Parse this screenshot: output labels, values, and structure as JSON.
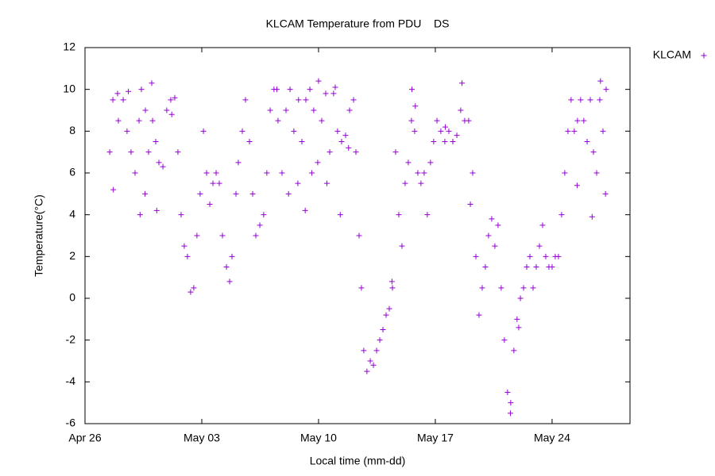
{
  "chart_data": {
    "type": "scatter",
    "title": "KLCAM Temperature from PDU    DS",
    "x_label": "Local time (mm-dd)",
    "y_label": "Temperature(°C)",
    "xlim": [
      0,
      32.67
    ],
    "xticks": [
      {
        "value": 0,
        "label": "Apr 26"
      },
      {
        "value": 7,
        "label": "May 03"
      },
      {
        "value": 14,
        "label": "May 10"
      },
      {
        "value": 21,
        "label": "May 17"
      },
      {
        "value": 28,
        "label": "May 24"
      }
    ],
    "ylim": [
      -6,
      12
    ],
    "yticks": [
      -6,
      -4,
      -2,
      0,
      2,
      4,
      6,
      8,
      10,
      12
    ],
    "legend_position": "top-right",
    "series": [
      {
        "name": "KLCAM",
        "color": "#9400d3",
        "x": [
          1.48,
          1.67,
          1.95,
          2.29,
          2.52,
          2.76,
          3.0,
          3.24,
          3.38,
          3.62,
          3.81,
          4.05,
          4.24,
          4.43,
          4.67,
          4.9,
          5.14,
          5.38,
          5.57,
          5.76,
          5.95,
          6.14,
          6.33,
          6.52,
          6.71,
          6.9,
          7.1,
          7.29,
          7.48,
          7.67,
          7.86,
          8.05,
          8.24,
          8.48,
          8.67,
          8.81,
          9.05,
          9.19,
          9.43,
          9.62,
          9.86,
          10.05,
          10.24,
          10.48,
          10.71,
          10.9,
          11.1,
          11.33,
          11.57,
          11.81,
          12.05,
          12.29,
          12.52,
          12.76,
          13.0,
          13.24,
          13.48,
          13.71,
          13.95,
          14.19,
          14.43,
          14.67,
          14.9,
          15.14,
          15.38,
          15.62,
          15.86,
          16.1,
          16.24,
          16.43,
          16.57,
          16.71,
          16.9,
          17.1,
          17.29,
          17.48,
          17.67,
          17.86,
          18.05,
          18.24,
          18.43,
          18.62,
          18.81,
          19.0,
          19.19,
          19.38,
          19.57,
          19.76,
          19.95,
          20.14,
          20.33,
          20.52,
          20.71,
          20.9,
          21.1,
          21.33,
          21.57,
          21.81,
          22.05,
          22.29,
          22.52,
          22.76,
          23.0,
          23.24,
          23.43,
          23.62,
          23.81,
          24.0,
          24.19,
          24.38,
          24.57,
          24.76,
          24.95,
          25.14,
          25.33,
          25.52,
          25.71,
          25.9,
          26.1,
          26.29,
          26.48,
          26.67,
          26.86,
          27.05,
          27.24,
          27.43,
          27.62,
          27.81,
          28.0,
          28.19,
          28.38,
          28.57,
          28.76,
          28.95,
          29.14,
          29.33,
          29.52,
          29.71,
          29.9,
          30.1,
          30.29,
          30.48,
          30.67,
          30.86,
          31.05,
          31.24,
          1.7,
          2.0,
          2.6,
          3.3,
          3.6,
          4.0,
          4.3,
          5.2,
          11.5,
          12.2,
          12.8,
          13.2,
          13.6,
          14.0,
          14.5,
          15.0,
          15.3,
          15.8,
          18.4,
          19.6,
          19.8,
          21.6,
          22.6,
          23.1,
          25.5,
          26.0,
          29.5,
          30.4,
          30.9,
          31.2
        ],
        "values": [
          7,
          9.5,
          9.8,
          9.5,
          8,
          7,
          6,
          8.5,
          10,
          9,
          7,
          8.5,
          7.5,
          6.5,
          6.3,
          9,
          9.5,
          9.6,
          7,
          4,
          2.5,
          2,
          0.3,
          0.5,
          3,
          5,
          8,
          6,
          4.5,
          5.5,
          6,
          5.5,
          3,
          1.5,
          0.8,
          2,
          5,
          6.5,
          8,
          9.5,
          7.5,
          5,
          3,
          3.5,
          4,
          6,
          9,
          10,
          8.5,
          6,
          9,
          10,
          8,
          5.5,
          7.5,
          9.5,
          10,
          9,
          6.5,
          8.5,
          9.8,
          7,
          9.8,
          8,
          7.5,
          7.8,
          9,
          9.5,
          7,
          3,
          0.5,
          -2.5,
          -3.5,
          -3,
          -3.2,
          -2.5,
          -2,
          -1.5,
          -0.8,
          -0.5,
          0.5,
          7,
          4,
          2.5,
          5.5,
          6.5,
          8.5,
          8,
          6,
          5.5,
          6,
          4,
          6.5,
          7.5,
          8.5,
          8,
          7.5,
          8,
          7.5,
          7.8,
          9,
          8.5,
          8.5,
          6,
          2,
          -0.8,
          0.5,
          1.5,
          3,
          3.8,
          2.5,
          3.5,
          0.5,
          -2,
          -4.5,
          -5,
          -2.5,
          -1,
          0,
          0.5,
          1.5,
          2,
          0.5,
          1.5,
          2.5,
          3.5,
          2,
          1.5,
          1.5,
          2,
          2,
          4,
          6,
          8,
          9.5,
          8,
          8.5,
          9.5,
          8.5,
          7.5,
          9.5,
          7,
          6,
          9.5,
          8,
          10,
          5.2,
          8.5,
          9.9,
          4,
          5,
          10.3,
          4.2,
          8.8,
          10,
          5,
          9.5,
          4.2,
          6,
          10.4,
          5.5,
          10.1,
          4,
          7.2,
          0.8,
          10,
          9.2,
          8.2,
          10.3,
          4.5,
          -5.5,
          -1.4,
          5.4,
          3.9,
          10.4,
          5
        ]
      }
    ]
  }
}
